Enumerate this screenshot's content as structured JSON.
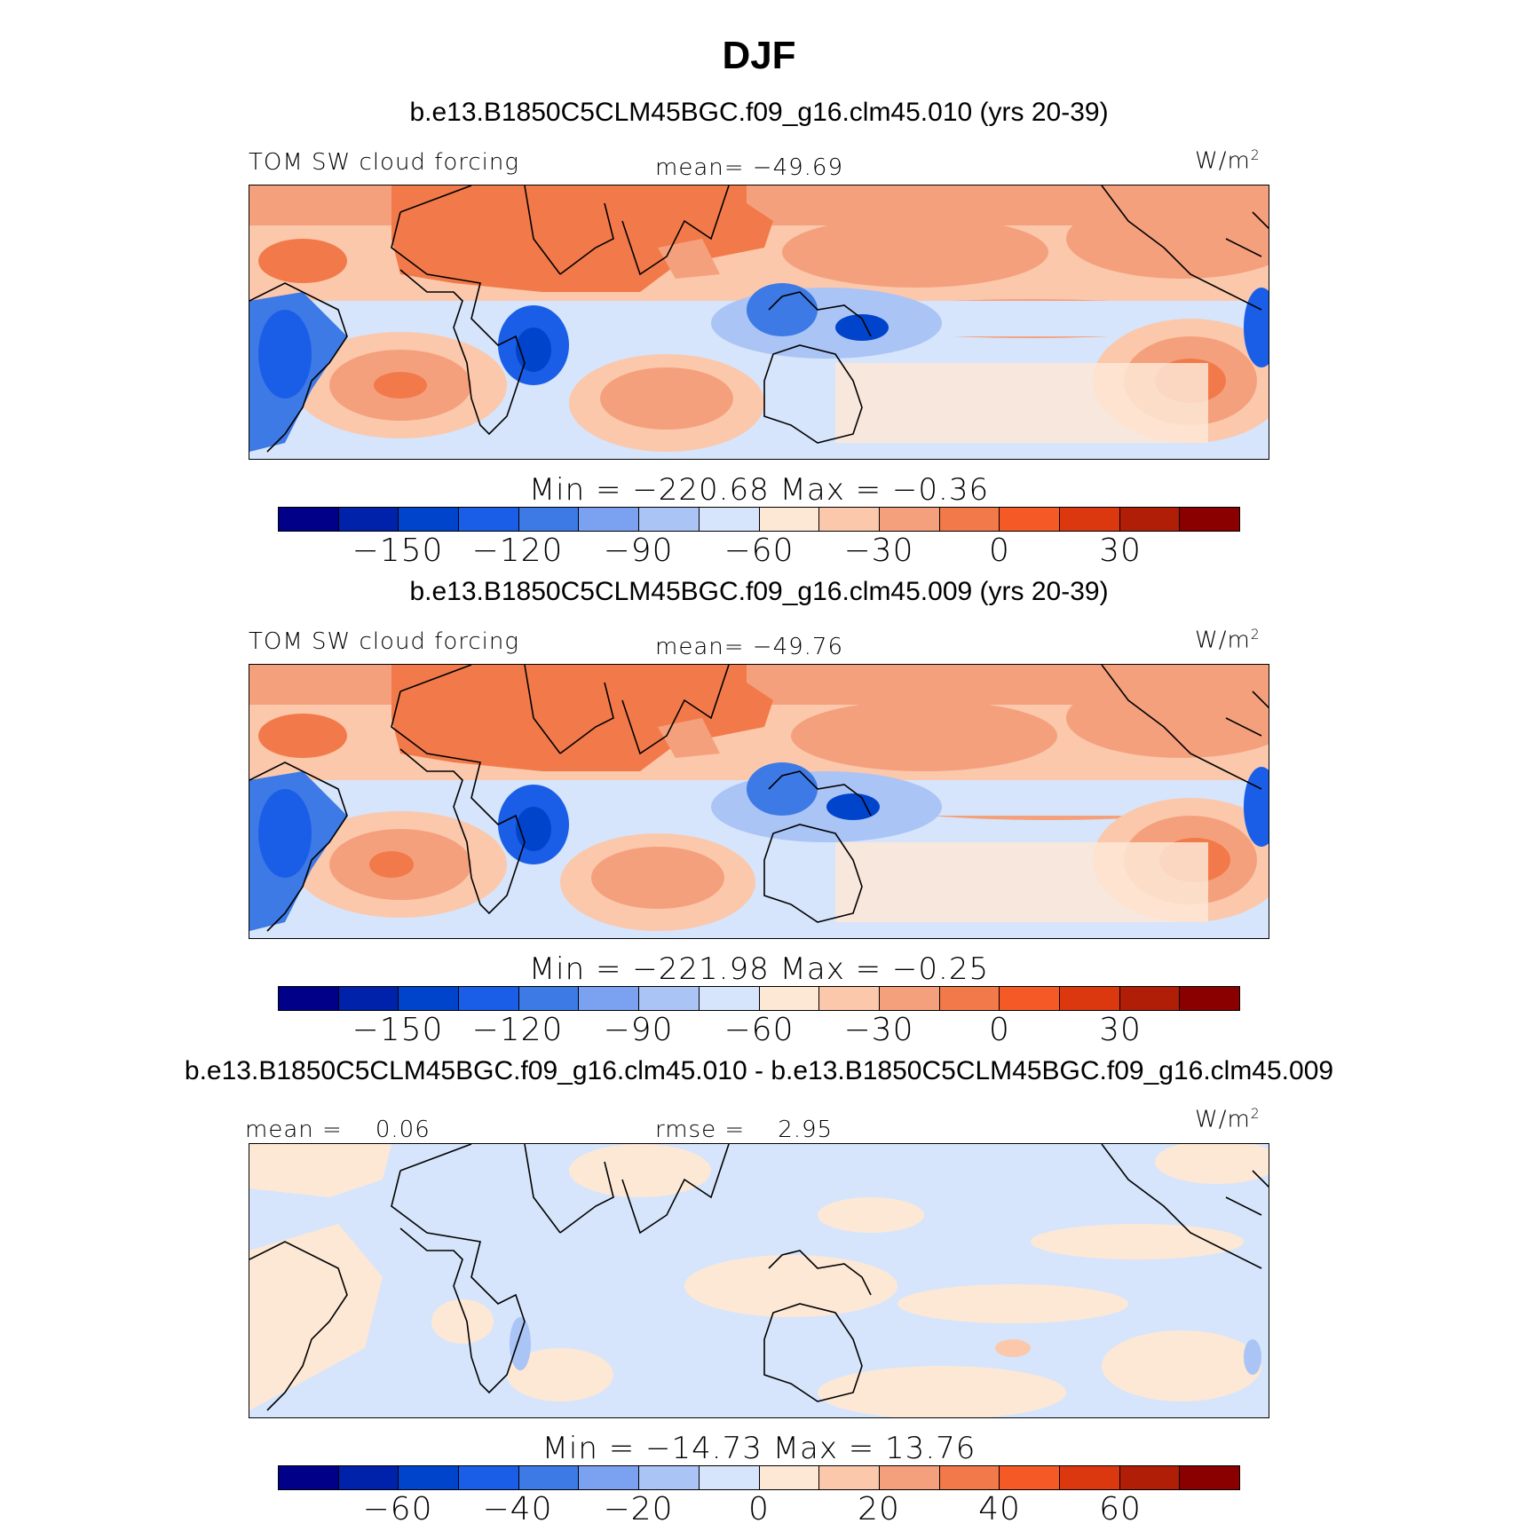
{
  "title": "DJF",
  "colorbar_colors": [
    "#000088",
    "#0022aa",
    "#0044cc",
    "#1a5ee8",
    "#3d7ae6",
    "#7aa2f0",
    "#aac4f5",
    "#d6e5fb",
    "#fde8d6",
    "#fbc8ac",
    "#f5a07c",
    "#f27a4a",
    "#f55a26",
    "#db3810",
    "#b01e08",
    "#8a0000"
  ],
  "panels": [
    {
      "run_title": "b.e13.B1850C5CLM45BGC.f09_g16.clm45.010 (yrs 20-39)",
      "left_label": "TOM SW cloud forcing",
      "center_label": "mean= −49.69",
      "units": "W/m",
      "units_sup": "2",
      "minmax": "Min = −220.68 Max = −0.36",
      "ticks": [
        "−150",
        "−120",
        "−90",
        "−60",
        "−30",
        "0",
        "30"
      ]
    },
    {
      "run_title": "b.e13.B1850C5CLM45BGC.f09_g16.clm45.009 (yrs 20-39)",
      "left_label": "TOM SW cloud forcing",
      "center_label": "mean= −49.76",
      "units": "W/m",
      "units_sup": "2",
      "minmax": "Min = −221.98 Max = −0.25",
      "ticks": [
        "−150",
        "−120",
        "−90",
        "−60",
        "−30",
        "0",
        "30"
      ]
    },
    {
      "run_title": "b.e13.B1850C5CLM45BGC.f09_g16.clm45.010 - b.e13.B1850C5CLM45BGC.f09_g16.clm45.009",
      "left_label": "mean =    0.06",
      "center_label": "rmse =    2.95",
      "units": "W/m",
      "units_sup": "2",
      "minmax": "Min = −14.73 Max =   13.76",
      "ticks": [
        "−60",
        "−40",
        "−20",
        "0",
        "20",
        "40",
        "60"
      ]
    }
  ]
}
